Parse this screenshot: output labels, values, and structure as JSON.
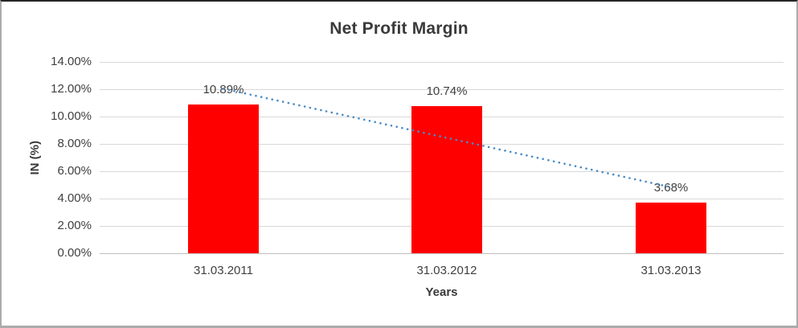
{
  "chart_data": {
    "type": "bar",
    "title": "Net Profit Margin",
    "xlabel": "Years",
    "ylabel": "IN (%)",
    "categories": [
      "31.03.2011",
      "31.03.2012",
      "31.03.2013"
    ],
    "values": [
      10.89,
      10.74,
      3.68
    ],
    "data_labels": [
      "10.89%",
      "10.74%",
      "3.68%"
    ],
    "ytick_labels": [
      "0.00%",
      "2.00%",
      "4.00%",
      "6.00%",
      "8.00%",
      "10.00%",
      "12.00%",
      "14.00%"
    ],
    "ylim": [
      0,
      14
    ],
    "ytick_step": 2,
    "grid": true,
    "legend": "none",
    "trendline": {
      "type": "linear",
      "style": "dotted"
    }
  },
  "colors": {
    "bar": "#ff0000",
    "trendline": "#4a8bc6",
    "gridline": "#d9d9d9",
    "axis_line": "#bfbfbf",
    "text": "#404040",
    "title": "#3a3a3a"
  }
}
